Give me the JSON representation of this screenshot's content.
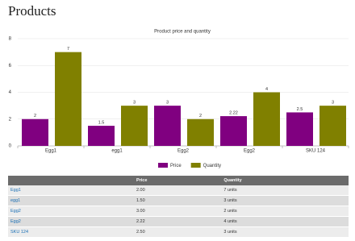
{
  "header": {
    "title": "Products"
  },
  "chart_data": {
    "type": "bar",
    "title": "Product price and quantity",
    "categories": [
      "Egg1",
      "egg1",
      "Egg2",
      "Egg2",
      "SKU 124"
    ],
    "series": [
      {
        "name": "Price",
        "color": "#800080",
        "values": [
          2,
          1.5,
          3,
          2.22,
          2.5
        ]
      },
      {
        "name": "Quantity",
        "color": "#808000",
        "values": [
          7,
          3,
          2,
          4,
          3
        ]
      }
    ],
    "ylim": [
      0,
      8
    ],
    "yticks": [
      0,
      2,
      4,
      6,
      8
    ],
    "grid": true,
    "legend": "bottom"
  },
  "table": {
    "header": [
      "",
      "Price",
      "Quantity"
    ],
    "rows": [
      [
        "Egg1",
        "2.00",
        "7 units"
      ],
      [
        "egg1",
        "1.50",
        "3 units"
      ],
      [
        "Egg2",
        "3.00",
        "2 units"
      ],
      [
        "Egg2",
        "2.22",
        "4 units"
      ],
      [
        "SKU 124",
        "2.50",
        "3 units"
      ]
    ]
  }
}
